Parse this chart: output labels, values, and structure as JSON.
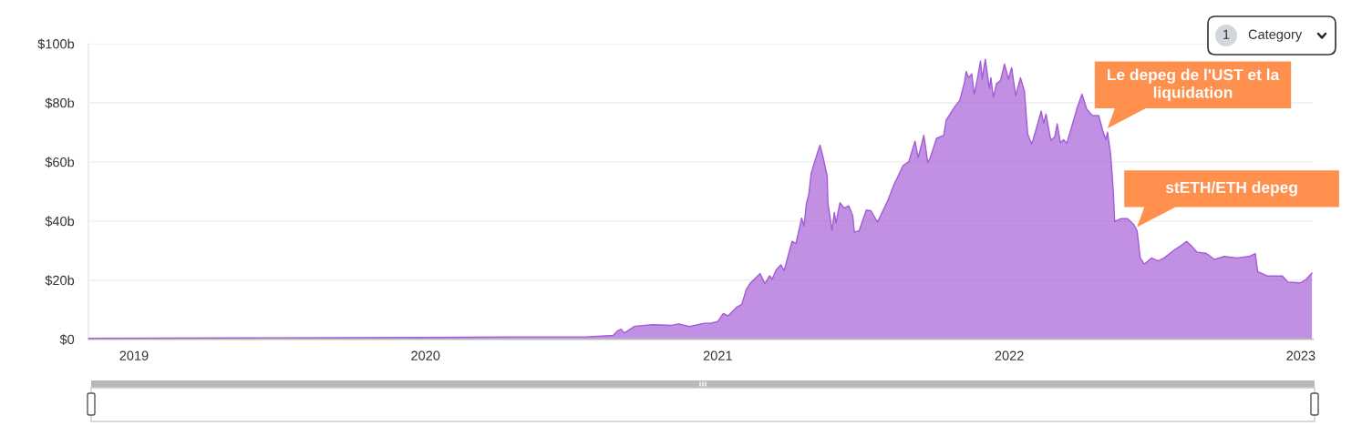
{
  "chart_data": {
    "type": "area",
    "x": [
      "2018-11-05",
      "2019-06-25",
      "2020-01-01",
      "2020-04-16",
      "2020-07-20",
      "2020-08-23",
      "2020-08-29",
      "2020-09-02",
      "2020-09-06",
      "2020-09-19",
      "2020-10-12",
      "2020-11-04",
      "2020-11-13",
      "2020-11-27",
      "2020-12-15",
      "2020-12-23",
      "2021-01-01",
      "2021-01-08",
      "2021-01-14",
      "2021-01-25",
      "2021-01-31",
      "2021-02-06",
      "2021-02-11",
      "2021-02-23",
      "2021-03-01",
      "2021-03-07",
      "2021-03-10",
      "2021-03-15",
      "2021-03-21",
      "2021-03-25",
      "2021-04-04",
      "2021-04-09",
      "2021-04-16",
      "2021-04-19",
      "2021-04-22",
      "2021-04-25",
      "2021-04-28",
      "2021-05-05",
      "2021-05-09",
      "2021-05-13",
      "2021-05-18",
      "2021-05-19",
      "2021-05-24",
      "2021-05-27",
      "2021-05-29",
      "2021-06-03",
      "2021-06-08",
      "2021-06-14",
      "2021-06-19",
      "2021-06-21",
      "2021-06-27",
      "2021-07-06",
      "2021-07-12",
      "2021-07-20",
      "2021-08-02",
      "2021-08-10",
      "2021-08-14",
      "2021-08-21",
      "2021-08-28",
      "2021-09-05",
      "2021-09-09",
      "2021-09-16",
      "2021-09-21",
      "2021-09-24",
      "2021-10-02",
      "2021-10-11",
      "2021-10-14",
      "2021-10-25",
      "2021-10-31",
      "2021-11-06",
      "2021-11-08",
      "2021-11-11",
      "2021-11-15",
      "2021-11-18",
      "2021-11-22",
      "2021-11-26",
      "2021-11-28",
      "2021-12-02",
      "2021-12-07",
      "2021-12-09",
      "2021-12-12",
      "2021-12-16",
      "2021-12-21",
      "2021-12-26",
      "2021-12-31",
      "2022-01-04",
      "2022-01-09",
      "2022-01-15",
      "2022-01-20",
      "2022-01-24",
      "2022-01-29",
      "2022-02-02",
      "2022-02-10",
      "2022-02-13",
      "2022-02-16",
      "2022-02-22",
      "2022-02-27",
      "2022-03-02",
      "2022-03-06",
      "2022-03-10",
      "2022-03-14",
      "2022-03-22",
      "2022-03-27",
      "2022-04-02",
      "2022-04-08",
      "2022-04-15",
      "2022-04-23",
      "2022-04-28",
      "2022-05-02",
      "2022-05-04",
      "2022-05-08",
      "2022-05-11",
      "2022-05-13",
      "2022-05-21",
      "2022-05-29",
      "2022-06-06",
      "2022-06-10",
      "2022-06-14",
      "2022-06-19",
      "2022-06-28",
      "2022-07-06",
      "2022-07-14",
      "2022-07-26",
      "2022-08-06",
      "2022-08-11",
      "2022-08-17",
      "2022-08-24",
      "2022-09-05",
      "2022-09-15",
      "2022-09-27",
      "2022-10-13",
      "2022-10-28",
      "2022-11-05",
      "2022-11-08",
      "2022-11-20",
      "2022-12-09",
      "2022-12-16",
      "2023-01-01",
      "2023-01-08",
      "2023-01-15"
    ],
    "series": [
      {
        "color": "#a35bd6",
        "values": [
          0.3,
          0.5,
          0.6,
          0.8,
          0.8,
          1.3,
          2.9,
          3.4,
          2.1,
          4.4,
          4.9,
          4.7,
          5.2,
          4.3,
          5.4,
          5.4,
          6.0,
          8.7,
          7.9,
          10.9,
          11.8,
          17.0,
          19.1,
          22.2,
          18.8,
          21.5,
          20.3,
          23.4,
          25.2,
          23.2,
          33.1,
          32.4,
          41.0,
          38.3,
          46.0,
          49.0,
          56.2,
          62.4,
          65.7,
          61.4,
          55.2,
          46.0,
          36.9,
          42.9,
          39.3,
          46.2,
          44.4,
          45.1,
          41.8,
          36.2,
          36.7,
          43.7,
          43.4,
          39.6,
          47.0,
          52.6,
          54.7,
          58.8,
          60.0,
          67.0,
          61.5,
          69.0,
          59.8,
          61.4,
          68.0,
          69.0,
          74.2,
          78.8,
          80.8,
          87.0,
          90.6,
          88.5,
          89.8,
          82.9,
          88.0,
          94.2,
          88.0,
          94.7,
          84.9,
          88.5,
          81.8,
          86.5,
          87.5,
          93.1,
          88.0,
          91.9,
          82.4,
          88.5,
          83.9,
          69.5,
          66.0,
          69.5,
          77.2,
          73.1,
          76.2,
          67.3,
          68.5,
          72.9,
          66.5,
          67.5,
          66.3,
          73.6,
          78.3,
          82.9,
          77.8,
          75.7,
          75.7,
          70.6,
          67.5,
          70.1,
          62.4,
          51.1,
          39.8,
          40.8,
          40.8,
          38.8,
          36.7,
          27.5,
          25.4,
          27.5,
          26.5,
          27.5,
          30.1,
          32.1,
          33.1,
          31.6,
          29.5,
          29.0,
          27.0,
          28.0,
          27.5,
          28.0,
          29.0,
          22.9,
          21.4,
          21.4,
          19.3,
          19.1,
          20.3,
          22.4
        ]
      }
    ],
    "xlim": [
      "2018-11-05",
      "2023-01-16"
    ],
    "xticks": [
      "2019",
      "2020",
      "2021",
      "2022",
      "2023"
    ],
    "ylim": [
      0,
      100
    ],
    "yticks": [
      {
        "value": 0,
        "label": "$0"
      },
      {
        "value": 20,
        "label": "$20b"
      },
      {
        "value": 40,
        "label": "$40b"
      },
      {
        "value": 60,
        "label": "$60b"
      },
      {
        "value": 80,
        "label": "$80b"
      },
      {
        "value": 100,
        "label": "$100b"
      }
    ],
    "grid": "y",
    "annotations": [
      "1",
      "Category",
      {
        "text": "Le depeg de l'UST et la\nliquidation",
        "x": "2022-05-04",
        "y": 70.1
      },
      {
        "text": "stETH/ETH depeg",
        "x": "2022-06-10",
        "y": 36.7
      }
    ]
  }
}
